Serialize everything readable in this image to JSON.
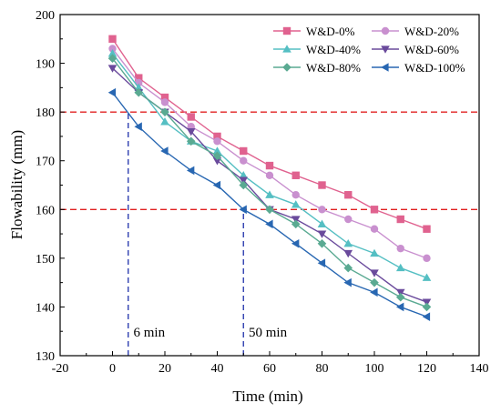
{
  "chart_data": {
    "type": "line",
    "xlabel": "Time (min)",
    "ylabel": "Flowability (mm)",
    "xlim": [
      -20,
      140
    ],
    "ylim": [
      130,
      200
    ],
    "xticks": [
      -20,
      0,
      20,
      40,
      60,
      80,
      100,
      120,
      140
    ],
    "yticks": [
      130,
      140,
      150,
      160,
      170,
      180,
      190,
      200
    ],
    "legend_position": "top-right",
    "grid": false,
    "x": [
      0,
      10,
      20,
      30,
      40,
      50,
      60,
      70,
      80,
      90,
      100,
      110,
      120
    ],
    "series": [
      {
        "name": "W&D-0%",
        "color": "#e0628f",
        "marker": "square",
        "values": [
          195,
          187,
          183,
          179,
          175,
          172,
          169,
          167,
          165,
          163,
          160,
          158,
          156
        ]
      },
      {
        "name": "W&D-20%",
        "color": "#c990cf",
        "marker": "circle",
        "values": [
          193,
          186,
          182,
          177,
          174,
          170,
          167,
          163,
          160,
          158,
          156,
          152,
          150
        ]
      },
      {
        "name": "W&D-40%",
        "color": "#55bfc3",
        "marker": "triangle-up",
        "values": [
          192,
          185,
          178,
          174,
          172,
          167,
          163,
          161,
          157,
          153,
          151,
          148,
          146
        ]
      },
      {
        "name": "W&D-60%",
        "color": "#6a4a9c",
        "marker": "triangle-down",
        "values": [
          189,
          184,
          180,
          176,
          170,
          166,
          160,
          158,
          155,
          151,
          147,
          143,
          141
        ]
      },
      {
        "name": "W&D-80%",
        "color": "#5aaa92",
        "marker": "diamond",
        "values": [
          191,
          184,
          180,
          174,
          171,
          165,
          160,
          157,
          153,
          148,
          145,
          142,
          140
        ]
      },
      {
        "name": "W&D-100%",
        "color": "#2867b2",
        "marker": "triangle-left",
        "values": [
          184,
          177,
          172,
          168,
          165,
          160,
          157,
          153,
          149,
          145,
          143,
          140,
          138
        ]
      }
    ],
    "reference_lines": [
      {
        "axis": "y",
        "value": 180,
        "color": "#e02020",
        "style": "dashed"
      },
      {
        "axis": "y",
        "value": 160,
        "color": "#e02020",
        "style": "dashed"
      },
      {
        "axis": "x",
        "value": 6,
        "y_to": 180,
        "color": "#2f3fb0",
        "style": "dashed"
      },
      {
        "axis": "x",
        "value": 50,
        "y_to": 160,
        "color": "#2f3fb0",
        "style": "dashed"
      }
    ],
    "annotations": [
      {
        "text": "6 min",
        "x": 8,
        "y": 135
      },
      {
        "text": "50 min",
        "x": 52,
        "y": 135
      }
    ]
  }
}
